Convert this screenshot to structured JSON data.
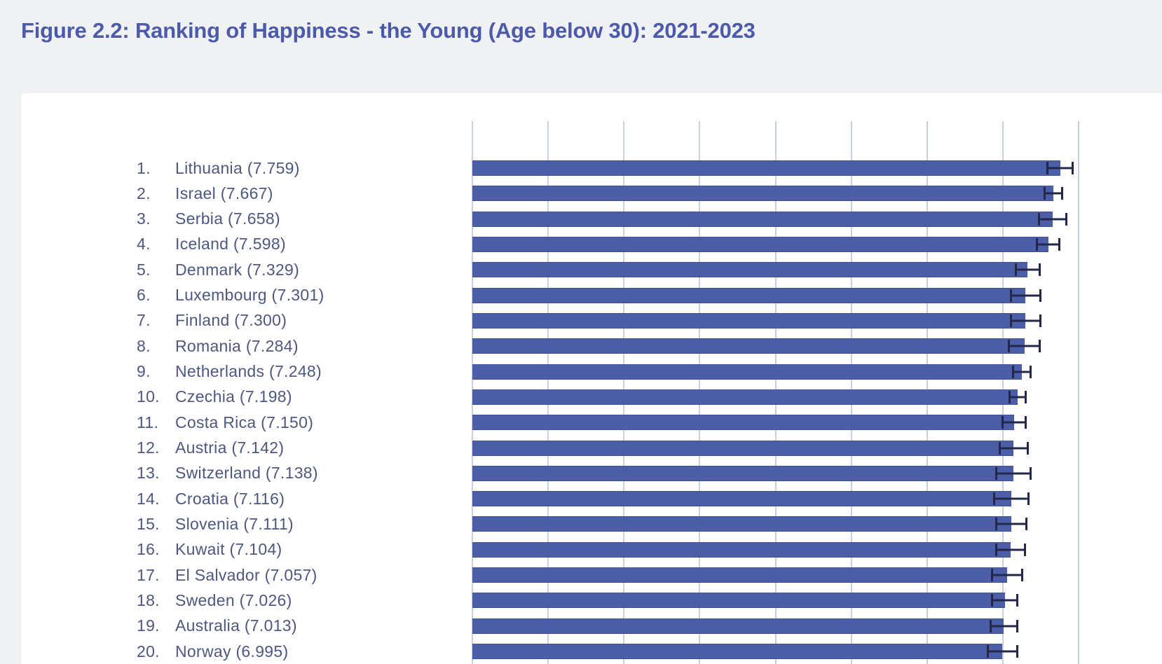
{
  "title": "Figure 2.2: Ranking of Happiness - the Young (Age below 30): 2021-2023",
  "colors": {
    "page_bg": "#F0F1F3",
    "card_bg": "#FFFFFF",
    "title": "#4B5AAB",
    "label": "#4E577F",
    "bar": "#4C5EA8",
    "error": "#23284A",
    "gridline": "#CBCFE2"
  },
  "chart_data": {
    "type": "bar",
    "orientation": "horizontal",
    "title": "Figure 2.2: Ranking of Happiness - the Young (Age below 30): 2021-2023",
    "xlabel": "",
    "ylabel": "",
    "xlim": [
      0,
      8
    ],
    "gridline_ticks": [
      0,
      1,
      2,
      3,
      4,
      5,
      6,
      7,
      8
    ],
    "grid": true,
    "legend": false,
    "error_bars": true,
    "ranks": [
      "1.",
      "2.",
      "3.",
      "4.",
      "5.",
      "6.",
      "7.",
      "8.",
      "9.",
      "10.",
      "11.",
      "12.",
      "13.",
      "14.",
      "15.",
      "16.",
      "17.",
      "18.",
      "19.",
      "20."
    ],
    "categories": [
      "Lithuania",
      "Israel",
      "Serbia",
      "Iceland",
      "Denmark",
      "Luxembourg",
      "Finland",
      "Romania",
      "Netherlands",
      "Czechia",
      "Costa Rica",
      "Austria",
      "Switzerland",
      "Croatia",
      "Slovenia",
      "Kuwait",
      "El Salvador",
      "Sweden",
      "Australia",
      "Norway"
    ],
    "values": [
      7.759,
      7.667,
      7.658,
      7.598,
      7.329,
      7.301,
      7.3,
      7.284,
      7.248,
      7.198,
      7.15,
      7.142,
      7.138,
      7.116,
      7.111,
      7.104,
      7.057,
      7.026,
      7.013,
      6.995
    ],
    "value_display": [
      "7.759",
      "7.667",
      "7.658",
      "7.598",
      "7.329",
      "7.301",
      "7.300",
      "7.284",
      "7.248",
      "7.198",
      "7.150",
      "7.142",
      "7.138",
      "7.116",
      "7.111",
      "7.104",
      "7.057",
      "7.026",
      "7.013",
      "6.995"
    ],
    "ci_halfwidth": [
      0.18,
      0.13,
      0.19,
      0.16,
      0.17,
      0.21,
      0.21,
      0.22,
      0.13,
      0.12,
      0.17,
      0.2,
      0.24,
      0.24,
      0.21,
      0.2,
      0.21,
      0.18,
      0.19,
      0.21
    ],
    "labels": [
      "Lithuania (7.759)",
      "Israel (7.667)",
      "Serbia (7.658)",
      "Iceland (7.598)",
      "Denmark (7.329)",
      "Luxembourg (7.301)",
      "Finland (7.300)",
      "Romania (7.284)",
      "Netherlands (7.248)",
      "Czechia (7.198)",
      "Costa Rica (7.150)",
      "Austria (7.142)",
      "Switzerland (7.138)",
      "Croatia (7.116)",
      "Slovenia (7.111)",
      "Kuwait (7.104)",
      "El Salvador (7.057)",
      "Sweden (7.026)",
      "Australia (7.013)",
      "Norway (6.995)"
    ]
  }
}
